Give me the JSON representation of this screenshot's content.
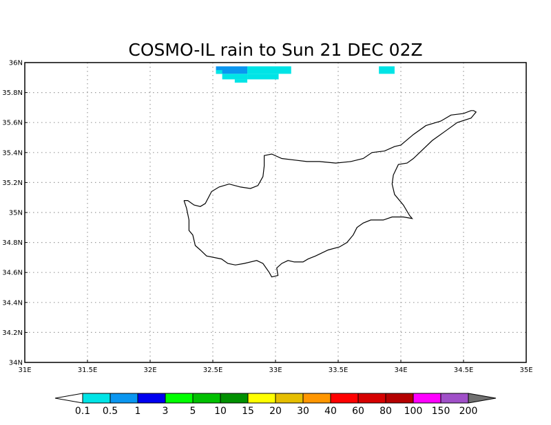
{
  "title": "COSMO-IL rain to Sun 21 DEC 02Z",
  "x_axis": {
    "min": 31,
    "max": 35,
    "ticks": [
      {
        "value": 31,
        "label": "31E"
      },
      {
        "value": 31.5,
        "label": "31.5E"
      },
      {
        "value": 32,
        "label": "32E"
      },
      {
        "value": 32.5,
        "label": "32.5E"
      },
      {
        "value": 33,
        "label": "33E"
      },
      {
        "value": 33.5,
        "label": "33.5E"
      },
      {
        "value": 34,
        "label": "34E"
      },
      {
        "value": 34.5,
        "label": "34.5E"
      },
      {
        "value": 35,
        "label": "35E"
      }
    ]
  },
  "y_axis": {
    "min": 34,
    "max": 36,
    "ticks": [
      {
        "value": 34,
        "label": "34N"
      },
      {
        "value": 34.2,
        "label": "34.2N"
      },
      {
        "value": 34.4,
        "label": "34.4N"
      },
      {
        "value": 34.6,
        "label": "34.6N"
      },
      {
        "value": 34.8,
        "label": "34.8N"
      },
      {
        "value": 35,
        "label": "35N"
      },
      {
        "value": 35.2,
        "label": "35.2N"
      },
      {
        "value": 35.4,
        "label": "35.4N"
      },
      {
        "value": 35.6,
        "label": "35.6N"
      },
      {
        "value": 35.8,
        "label": "35.8N"
      },
      {
        "value": 36,
        "label": "36N"
      }
    ]
  },
  "grid": "dotted",
  "coastline": [
    [
      32.27,
      35.08
    ],
    [
      32.3,
      35.08
    ],
    [
      32.35,
      35.05
    ],
    [
      32.4,
      35.04
    ],
    [
      32.44,
      35.06
    ],
    [
      32.49,
      35.14
    ],
    [
      32.55,
      35.17
    ],
    [
      32.63,
      35.19
    ],
    [
      32.72,
      35.17
    ],
    [
      32.8,
      35.16
    ],
    [
      32.86,
      35.18
    ],
    [
      32.9,
      35.24
    ],
    [
      32.91,
      35.31
    ],
    [
      32.91,
      35.38
    ],
    [
      32.97,
      35.39
    ],
    [
      33.05,
      35.36
    ],
    [
      33.15,
      35.35
    ],
    [
      33.25,
      35.34
    ],
    [
      33.35,
      35.34
    ],
    [
      33.48,
      35.33
    ],
    [
      33.6,
      35.34
    ],
    [
      33.7,
      35.36
    ],
    [
      33.77,
      35.4
    ],
    [
      33.87,
      35.41
    ],
    [
      33.95,
      35.44
    ],
    [
      34.0,
      35.45
    ],
    [
      34.1,
      35.52
    ],
    [
      34.2,
      35.58
    ],
    [
      34.32,
      35.61
    ],
    [
      34.4,
      35.65
    ],
    [
      34.5,
      35.66
    ],
    [
      34.56,
      35.68
    ],
    [
      34.58,
      35.68
    ],
    [
      34.6,
      35.67
    ],
    [
      34.56,
      35.63
    ],
    [
      34.45,
      35.6
    ],
    [
      34.35,
      35.54
    ],
    [
      34.25,
      35.48
    ],
    [
      34.1,
      35.36
    ],
    [
      34.05,
      35.33
    ],
    [
      33.98,
      35.32
    ],
    [
      33.94,
      35.25
    ],
    [
      33.93,
      35.19
    ],
    [
      33.95,
      35.12
    ],
    [
      34.02,
      35.05
    ],
    [
      34.07,
      34.98
    ],
    [
      34.09,
      34.96
    ],
    [
      34.02,
      34.97
    ],
    [
      33.93,
      34.97
    ],
    [
      33.86,
      34.95
    ],
    [
      33.76,
      34.95
    ],
    [
      33.7,
      34.93
    ],
    [
      33.65,
      34.9
    ],
    [
      33.62,
      34.85
    ],
    [
      33.57,
      34.8
    ],
    [
      33.51,
      34.77
    ],
    [
      33.42,
      34.75
    ],
    [
      33.32,
      34.71
    ],
    [
      33.26,
      34.69
    ],
    [
      33.22,
      34.67
    ],
    [
      33.15,
      34.67
    ],
    [
      33.1,
      34.68
    ],
    [
      33.05,
      34.66
    ],
    [
      33.01,
      34.63
    ],
    [
      33.02,
      34.58
    ],
    [
      32.97,
      34.57
    ],
    [
      32.95,
      34.6
    ],
    [
      32.9,
      34.66
    ],
    [
      32.85,
      34.68
    ],
    [
      32.75,
      34.66
    ],
    [
      32.68,
      34.65
    ],
    [
      32.62,
      34.66
    ],
    [
      32.57,
      34.69
    ],
    [
      32.45,
      34.71
    ],
    [
      32.4,
      34.75
    ],
    [
      32.36,
      34.78
    ],
    [
      32.34,
      34.85
    ],
    [
      32.31,
      34.88
    ],
    [
      32.31,
      34.95
    ],
    [
      32.29,
      35.03
    ],
    [
      32.27,
      35.08
    ]
  ],
  "rain_cells": [
    {
      "lon0": 32.525,
      "lon1": 32.775,
      "lat0": 35.925,
      "lat1": 35.975,
      "color": "#0a96f0"
    },
    {
      "lon0": 32.525,
      "lon1": 32.575,
      "lat0": 35.925,
      "lat1": 35.95,
      "color": "#00e4e6"
    },
    {
      "lon0": 32.575,
      "lon1": 32.775,
      "lat0": 35.888,
      "lat1": 35.925,
      "color": "#00e4e6"
    },
    {
      "lon0": 32.775,
      "lon1": 33.125,
      "lat0": 35.925,
      "lat1": 35.975,
      "color": "#00e4e6"
    },
    {
      "lon0": 32.775,
      "lon1": 33.025,
      "lat0": 35.888,
      "lat1": 35.925,
      "color": "#00e4e6"
    },
    {
      "lon0": 32.675,
      "lon1": 32.775,
      "lat0": 35.866,
      "lat1": 35.888,
      "color": "#00e4e6"
    },
    {
      "lon0": 33.825,
      "lon1": 33.95,
      "lat0": 35.925,
      "lat1": 35.975,
      "color": "#00e4e6"
    }
  ],
  "colorbar": {
    "left_arrow_color": "#ffffff",
    "right_arrow_color": "#707070",
    "colors": [
      "#00e4e6",
      "#0a96f0",
      "#0000f0",
      "#00ff00",
      "#00c000",
      "#009000",
      "#ffff00",
      "#e6be00",
      "#ff9600",
      "#ff0000",
      "#d60000",
      "#b40000",
      "#ff00ff",
      "#a050c8"
    ],
    "labels": [
      "0.1",
      "0.5",
      "1",
      "3",
      "5",
      "10",
      "15",
      "20",
      "30",
      "40",
      "60",
      "80",
      "100",
      "150",
      "200"
    ]
  }
}
